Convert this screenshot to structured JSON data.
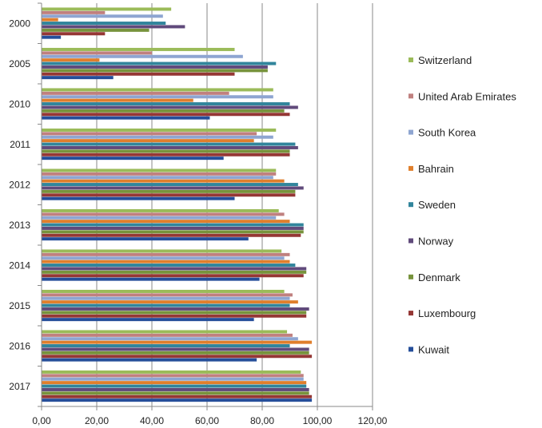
{
  "chart_data": {
    "type": "bar",
    "orientation": "horizontal",
    "categories": [
      "2000",
      "2005",
      "2010",
      "2011",
      "2012",
      "2013",
      "2014",
      "2015",
      "2016",
      "2017"
    ],
    "xlim": [
      0,
      120
    ],
    "xticks": [
      "0,00",
      "20,00",
      "40,00",
      "60,00",
      "80,00",
      "100,00",
      "120,00"
    ],
    "grid": true,
    "legend_position": "right",
    "series": [
      {
        "name": "Switzerland",
        "color": "#9bbb59",
        "values": [
          47,
          70,
          84,
          85,
          85,
          86,
          87,
          88,
          89,
          94
        ]
      },
      {
        "name": "United Arab Emirates",
        "color": "#c0807f",
        "values": [
          23,
          40,
          68,
          78,
          85,
          88,
          90,
          91,
          91,
          95
        ]
      },
      {
        "name": "South Korea",
        "color": "#8ea5d1",
        "values": [
          44,
          73,
          84,
          84,
          84,
          85,
          88,
          90,
          93,
          95
        ]
      },
      {
        "name": "Bahrain",
        "color": "#e07f2c",
        "values": [
          6,
          21,
          55,
          77,
          88,
          90,
          90,
          93,
          98,
          96
        ]
      },
      {
        "name": "Sweden",
        "color": "#31859c",
        "values": [
          45,
          85,
          90,
          92,
          93,
          95,
          92,
          90,
          90,
          96
        ]
      },
      {
        "name": "Norway",
        "color": "#604a7b",
        "values": [
          52,
          82,
          93,
          93,
          95,
          95,
          96,
          97,
          97,
          97
        ]
      },
      {
        "name": "Denmark",
        "color": "#77933c",
        "values": [
          39,
          82,
          88,
          90,
          92,
          95,
          96,
          96,
          97,
          97
        ]
      },
      {
        "name": "Luxembourg",
        "color": "#953735",
        "values": [
          23,
          70,
          90,
          90,
          92,
          94,
          95,
          96,
          98,
          98
        ]
      },
      {
        "name": "Kuwait",
        "color": "#254e9a",
        "values": [
          7,
          26,
          61,
          66,
          70,
          75,
          79,
          77,
          78,
          98
        ]
      }
    ]
  }
}
